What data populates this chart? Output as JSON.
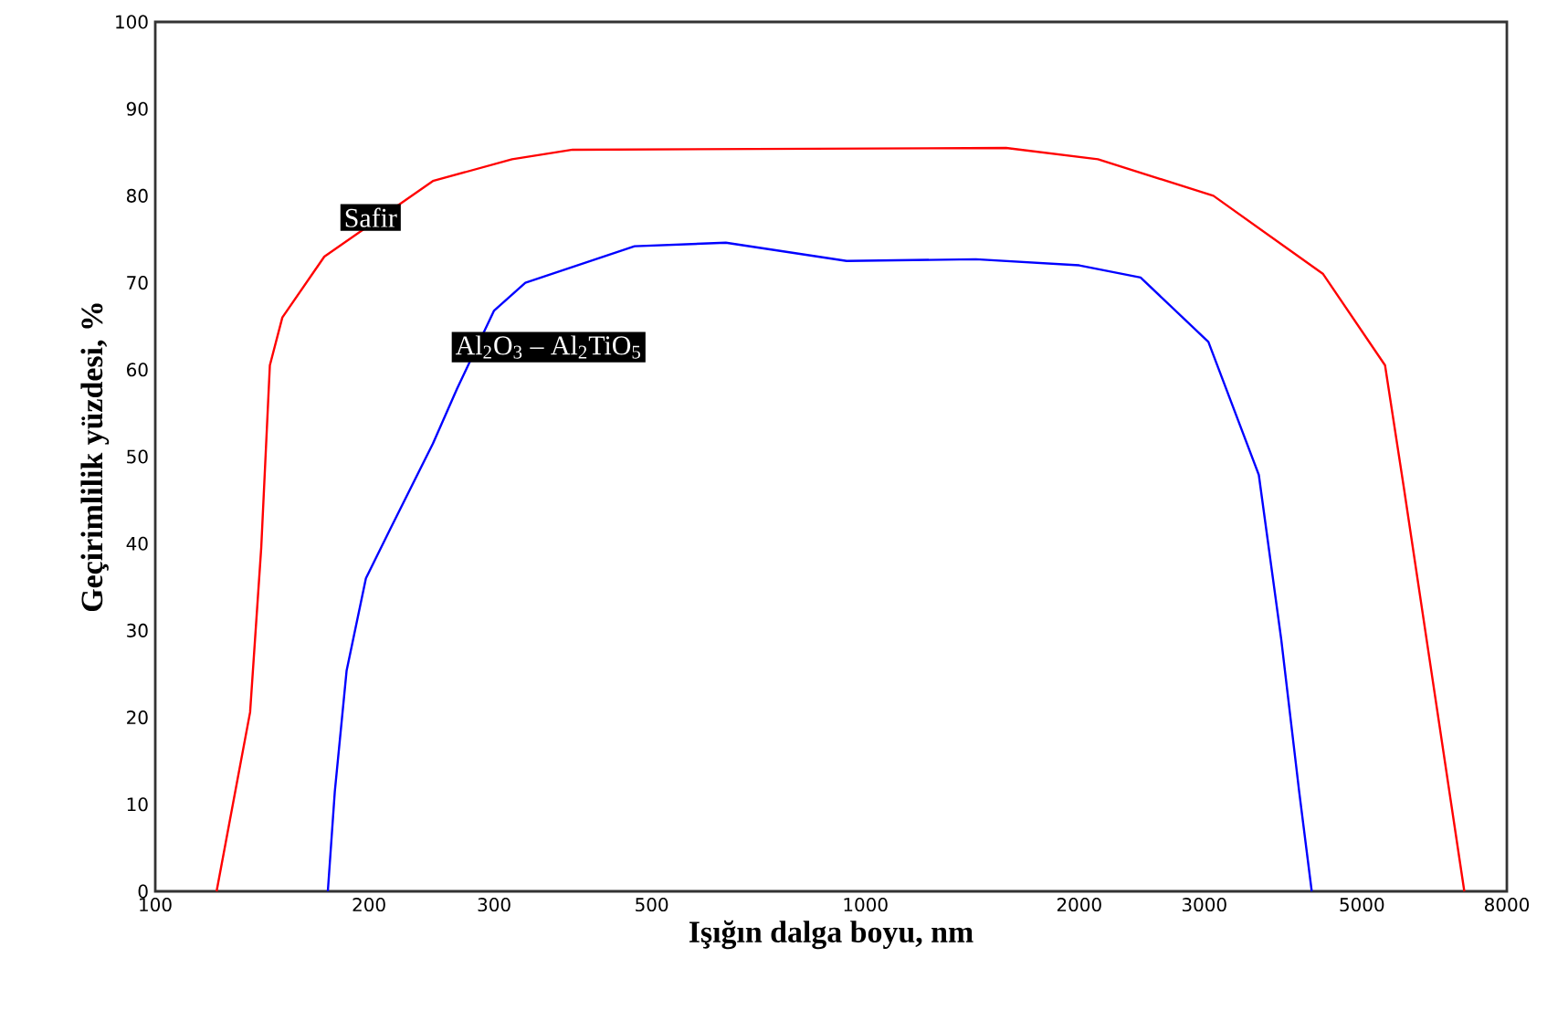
{
  "chart_data": {
    "type": "line",
    "xlabel": "Işığın dalga boyu, nm",
    "ylabel": "Geçirimlilik yüzdesi, %",
    "log": "x",
    "xlim": [
      100,
      8000
    ],
    "ylim": [
      0,
      100
    ],
    "xticks": [
      100,
      200,
      300,
      500,
      1000,
      2000,
      3000,
      5000,
      8000
    ],
    "yticks": [
      0,
      10,
      20,
      30,
      40,
      50,
      60,
      70,
      80,
      90,
      100
    ],
    "grid": false,
    "legend": false,
    "marker": "none",
    "line_style": "solid",
    "series": [
      {
        "name": "Safir",
        "color": "#ff0000",
        "x": [
          122,
          136,
          141,
          145,
          151,
          173,
          246,
          318,
          387,
          1578,
          2125,
          3090,
          4410,
          5390,
          5730,
          6970
        ],
        "values": [
          0,
          20.6,
          39.5,
          60.5,
          66,
          73,
          81.7,
          84.2,
          85.3,
          85.5,
          84.2,
          80,
          71,
          60.5,
          46.4,
          0
        ]
      },
      {
        "name": "Al$_{2}$O$_{3}$ – Al$_{2}$TiO$_{5}$",
        "color": "#0000ff",
        "x": [
          175,
          179,
          186,
          198,
          214,
          246,
          266,
          300,
          332,
          473,
          636,
          941,
          1430,
          2000,
          2440,
          3040,
          3580,
          3850,
          4080,
          4250
        ],
        "values": [
          0,
          11.5,
          25.4,
          36,
          41.6,
          51.5,
          57.8,
          66.8,
          70,
          74.2,
          74.6,
          72.5,
          72.7,
          72,
          70.6,
          63.2,
          47.9,
          29,
          11.5,
          0
        ]
      }
    ]
  }
}
